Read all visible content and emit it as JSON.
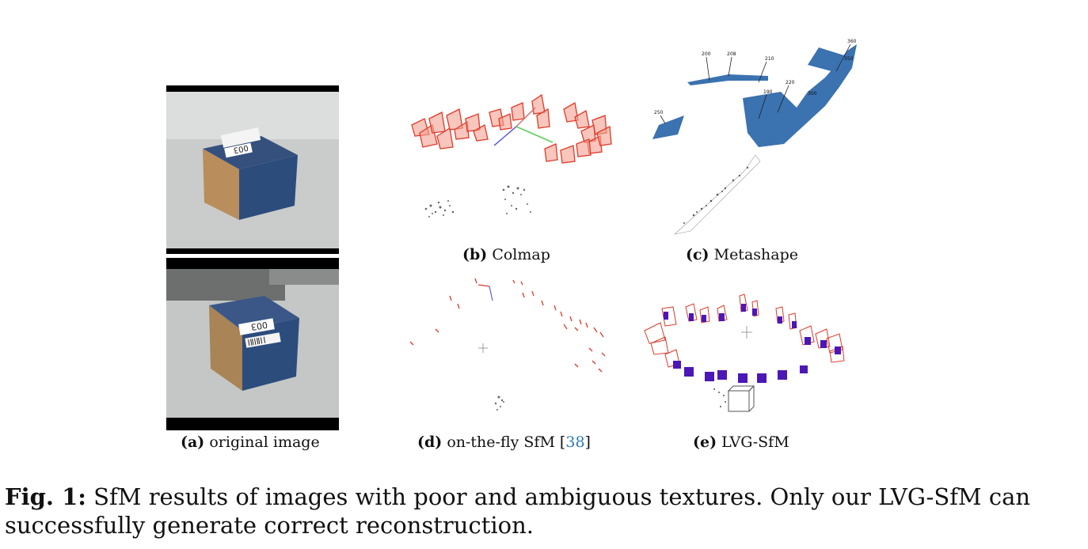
{
  "panels": {
    "a": {
      "label": "(a)",
      "caption": "original image",
      "box1_text": "003",
      "box2_text": "003"
    },
    "b": {
      "label": "(b)",
      "caption": "Colmap"
    },
    "c": {
      "label": "(c)",
      "caption": "Metashape",
      "tags": [
        "200",
        "208",
        "210",
        "360",
        "350",
        "220",
        "190",
        "250",
        "300"
      ]
    },
    "d": {
      "label": "(d)",
      "caption": "on-the-fly SfM [",
      "cite": "38",
      "cite_close": "]"
    },
    "e": {
      "label": "(e)",
      "caption": "LVG-SfM"
    }
  },
  "figure_caption": {
    "label": "Fig. 1:",
    "text": " SfM results of images with poor and ambiguous textures. Only our LVG-SfM can successfully generate correct reconstruction."
  },
  "colors": {
    "camera_red": "#e03a2a",
    "camera_fill": "#f3a08f",
    "metashape_blue": "#3b72b0",
    "lvg_purple": "#4b17b7",
    "box_blue": "#2c4c7c",
    "cite_blue": "#2b7bbf"
  }
}
